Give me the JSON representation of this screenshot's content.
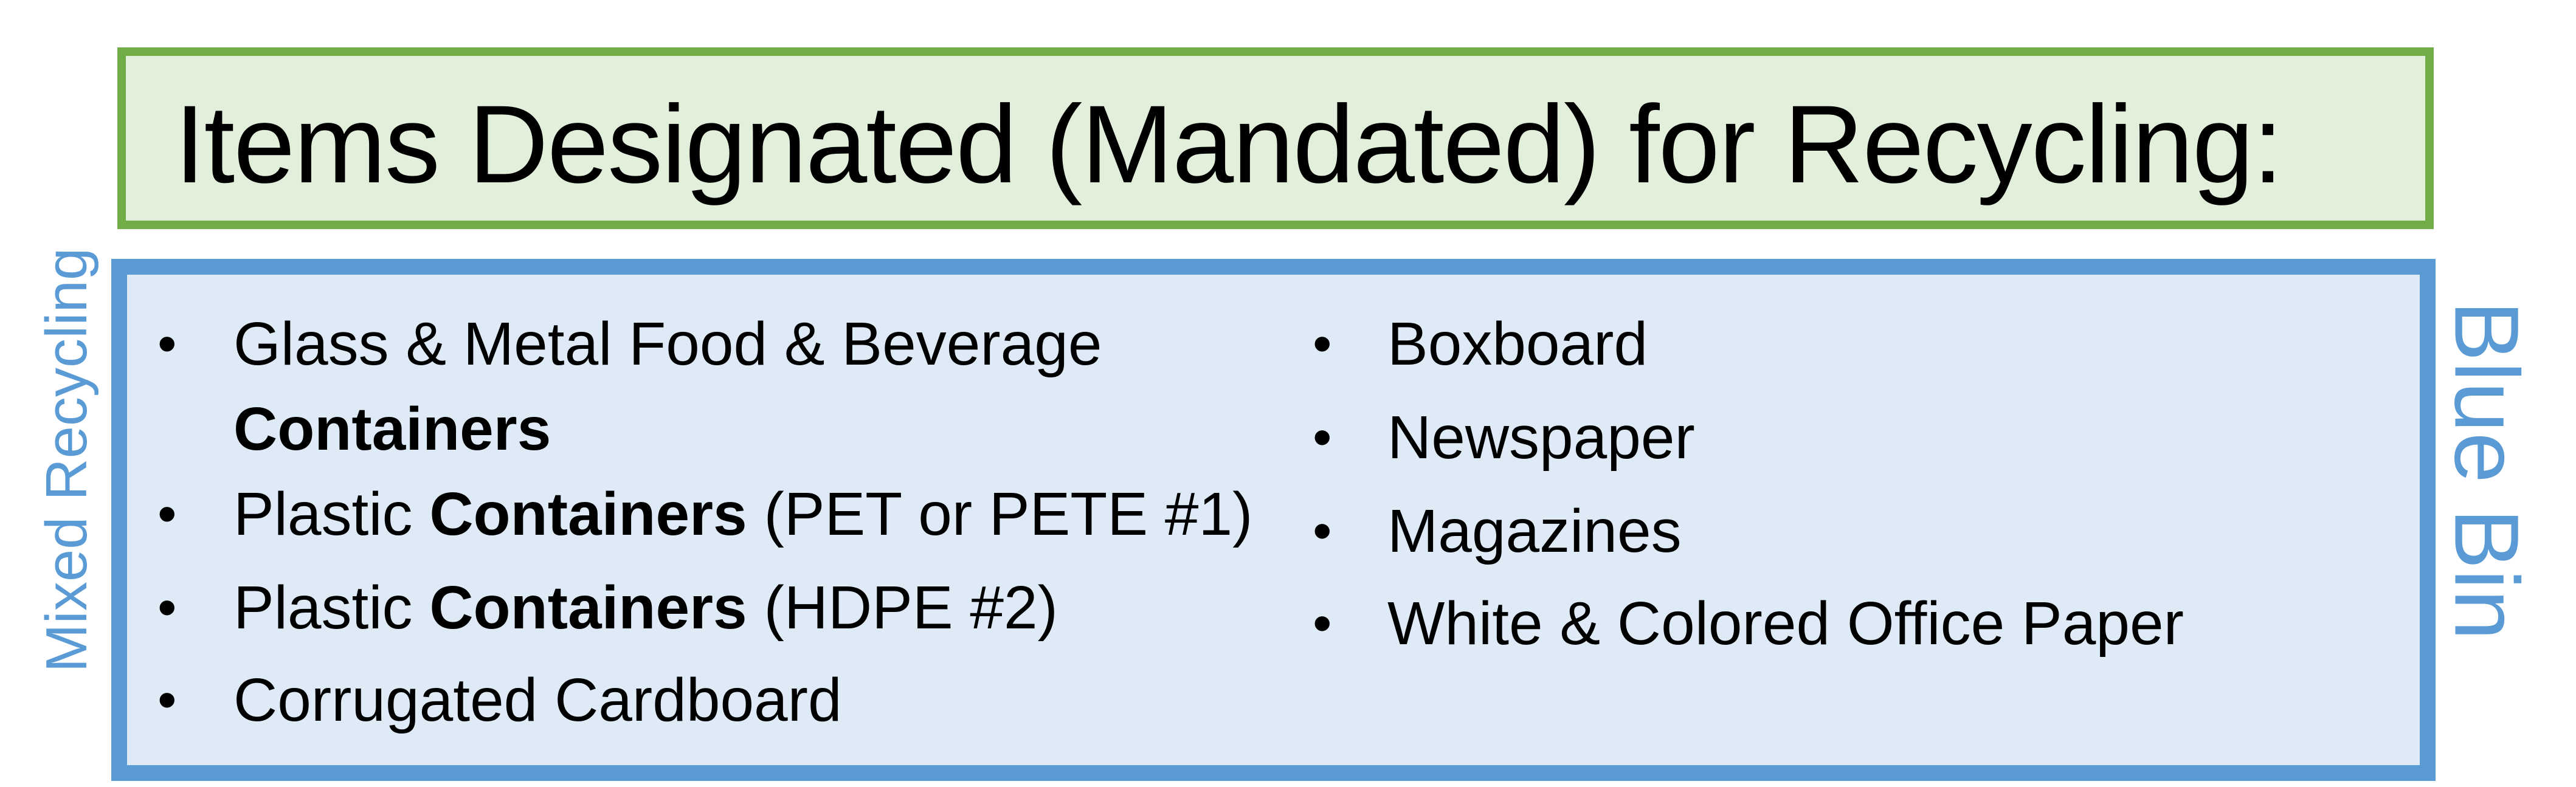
{
  "title": "Items Designated (Mandated) for Recycling:",
  "side_labels": {
    "left": "Mixed Recycling",
    "right": "Blue Bin"
  },
  "left_column": [
    {
      "pre": "Glass & Metal Food & Beverage",
      "bold": "Containers",
      "post": ""
    },
    {
      "pre": "Plastic ",
      "bold": "Containers",
      "post": " (PET or PETE #1)"
    },
    {
      "pre": "Plastic ",
      "bold": "Containers",
      "post": " (HDPE #2)"
    },
    {
      "pre": "Corrugated Cardboard",
      "bold": "",
      "post": ""
    }
  ],
  "right_column": [
    "Boxboard",
    "Newspaper",
    "Magazines",
    "White & Colored Office Paper"
  ],
  "bullet": "•",
  "colors": {
    "title_border": "#70AD47",
    "title_fill": "#E2EFDA",
    "list_border": "#5B9BD5",
    "list_fill": "#DEEBF7",
    "side_text": "#5B9BD5"
  }
}
